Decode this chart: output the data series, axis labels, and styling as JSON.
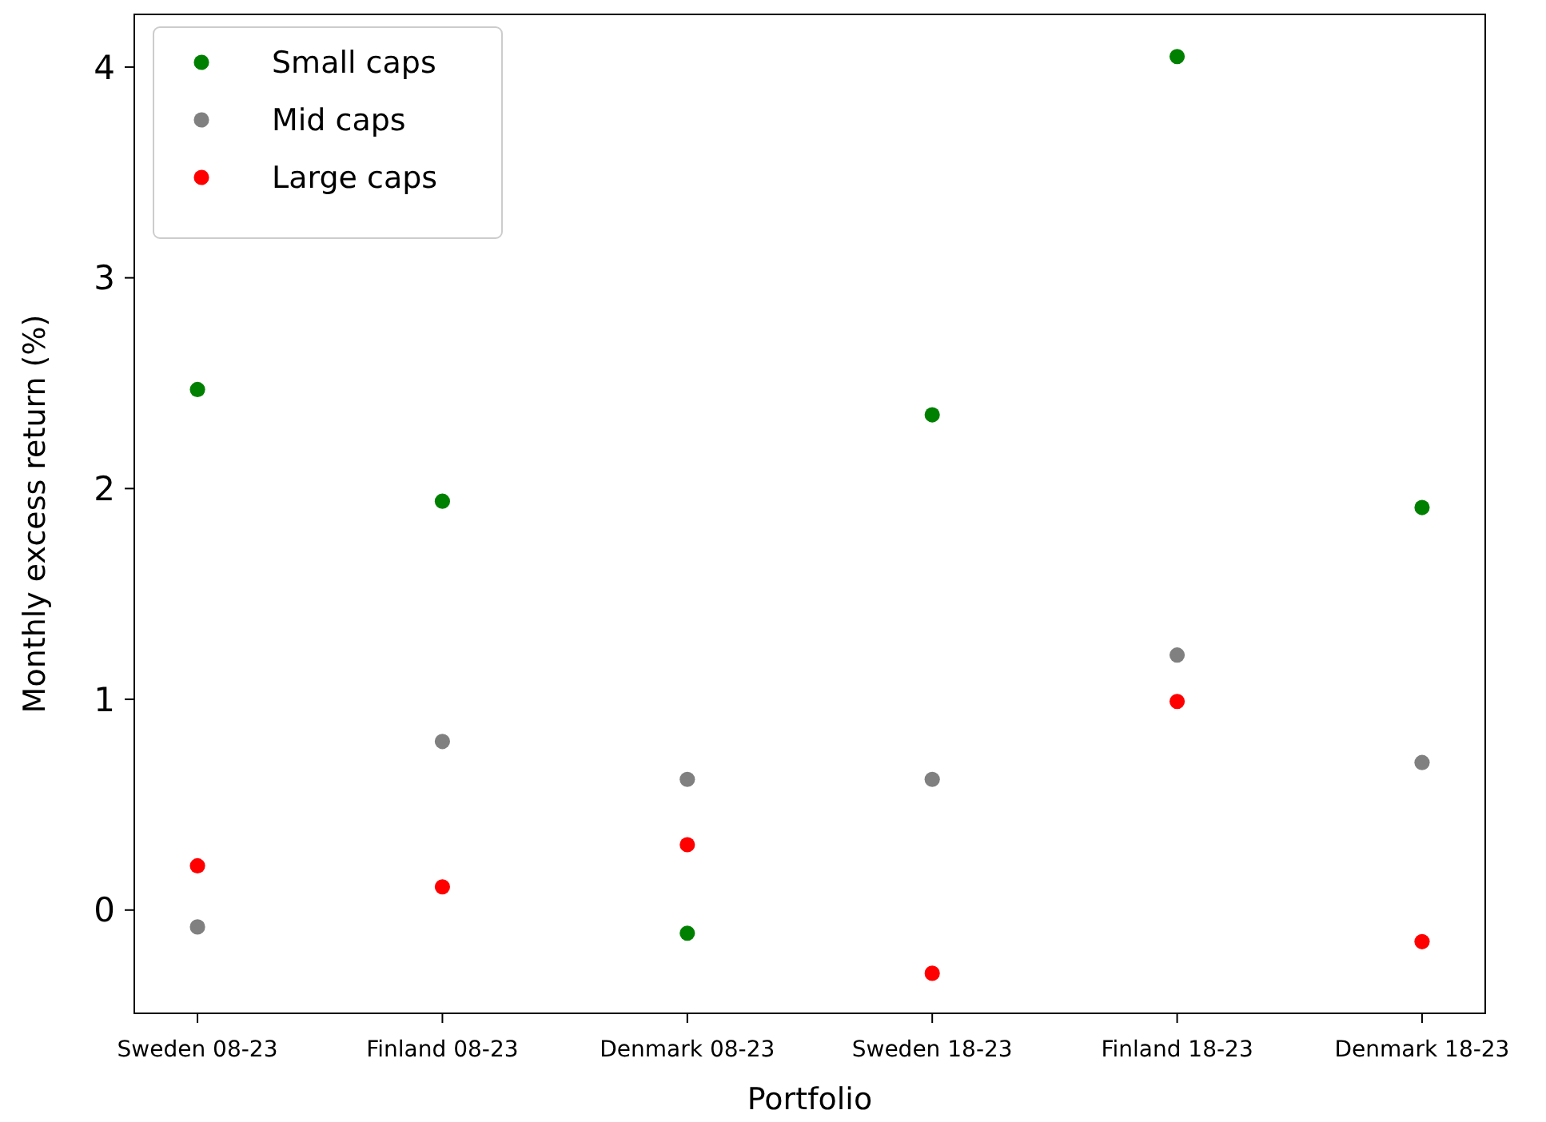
{
  "chart_data": {
    "type": "scatter",
    "xlabel": "Portfolio",
    "ylabel": "Monthly excess return (%)",
    "categories": [
      "Sweden 08-23",
      "Finland 08-23",
      "Denmark 08-23",
      "Sweden 18-23",
      "Finland 18-23",
      "Denmark 18-23"
    ],
    "series": [
      {
        "name": "Small caps",
        "color": "#008000",
        "values": [
          2.47,
          1.94,
          -0.11,
          2.35,
          4.05,
          1.91
        ]
      },
      {
        "name": "Mid caps",
        "color": "#808080",
        "values": [
          -0.08,
          0.8,
          0.62,
          0.62,
          1.21,
          0.7
        ]
      },
      {
        "name": "Large caps",
        "color": "#ff0000",
        "values": [
          0.21,
          0.11,
          0.31,
          -0.3,
          0.99,
          -0.15
        ]
      }
    ],
    "ylim": [
      -0.49,
      4.25
    ],
    "yticks": [
      0,
      1,
      2,
      3,
      4
    ],
    "grid": false,
    "legend": "top left",
    "marker": "circle"
  }
}
